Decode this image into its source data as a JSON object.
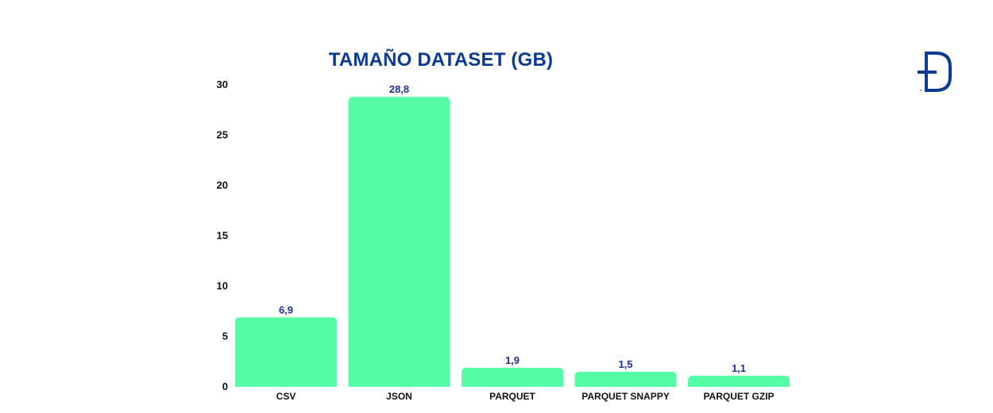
{
  "chart_data": {
    "type": "bar",
    "title": "TAMAÑO DATASET (GB)",
    "xlabel": "",
    "ylabel": "",
    "categories": [
      "CSV",
      "JSON",
      "PARQUET",
      "PARQUET SNAPPY",
      "PARQUET GZIP"
    ],
    "values": [
      6.9,
      28.8,
      1.9,
      1.5,
      1.1
    ],
    "value_labels": [
      "6,9",
      "28,8",
      "1,9",
      "1,5",
      "1,1"
    ],
    "ylim": [
      0,
      30
    ],
    "yticks": [
      0,
      5,
      10,
      15,
      20,
      25,
      30
    ],
    "ytick_labels": [
      "0",
      "5",
      "10",
      "15",
      "20",
      "25",
      "30"
    ],
    "grid": false,
    "legend": "none",
    "bar_color": "#56fda7",
    "label_color": "#1f2f8f",
    "tick_color": "#111111"
  },
  "title_color": "#0b3a91",
  "logo": {
    "icon": "d-logo-icon",
    "color": "#0b3a91"
  }
}
